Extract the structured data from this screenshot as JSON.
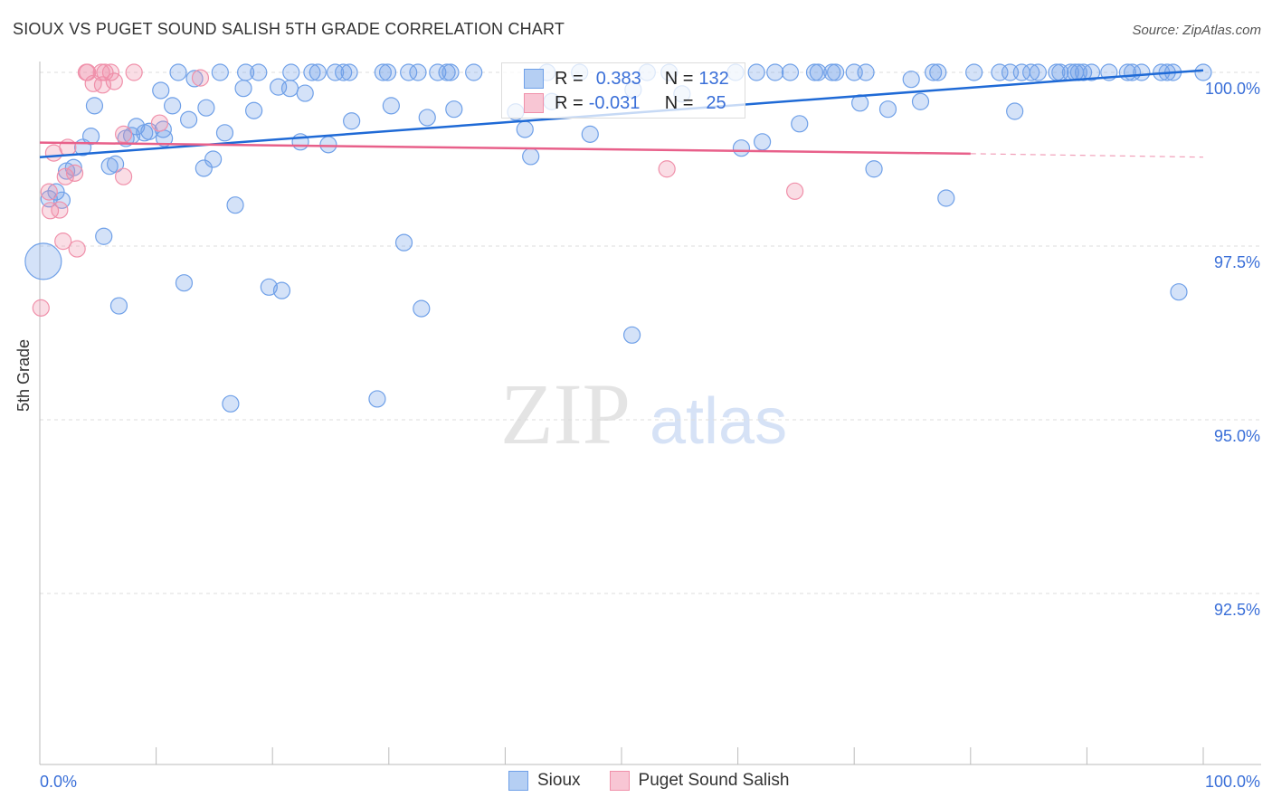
{
  "chart_data": {
    "type": "scatter",
    "title": "SIOUX VS PUGET SOUND SALISH 5TH GRADE CORRELATION CHART",
    "source": "Source: ZipAtlas.com",
    "xlabel": "",
    "ylabel": "5th Grade",
    "xlim": [
      0,
      100
    ],
    "ylim": [
      90,
      100
    ],
    "x_tick_labels": [
      "0.0%",
      "100.0%"
    ],
    "y_ticks": [
      {
        "v": 100,
        "label": "100.0%"
      },
      {
        "v": 97.5,
        "label": "97.5%"
      },
      {
        "v": 95,
        "label": "95.0%"
      },
      {
        "v": 92.5,
        "label": "92.5%"
      }
    ],
    "watermark": "ZIPatlas",
    "legend": {
      "stats": [
        {
          "r_label": "R =",
          "r": "0.383",
          "n_label": "N =",
          "n": "132"
        },
        {
          "r_label": "R =",
          "r": "-0.031",
          "n_label": "N =",
          "n": "25"
        }
      ]
    },
    "series": [
      {
        "name": "Sioux",
        "color": "#6fa0e8",
        "line_color": "#1f6ad6",
        "trend": [
          [
            0,
            98.78
          ],
          [
            100,
            100.03
          ]
        ],
        "points": [
          [
            11.9,
            100
          ],
          [
            15.5,
            100
          ],
          [
            17.7,
            100
          ],
          [
            18.8,
            100
          ],
          [
            21.6,
            100
          ],
          [
            23.4,
            100
          ],
          [
            23.9,
            100
          ],
          [
            25.4,
            100
          ],
          [
            26.1,
            100
          ],
          [
            26.6,
            100
          ],
          [
            29.5,
            100
          ],
          [
            29.9,
            100
          ],
          [
            31.7,
            100
          ],
          [
            32.5,
            100
          ],
          [
            34.2,
            100
          ],
          [
            35.0,
            100
          ],
          [
            35.3,
            100
          ],
          [
            37.3,
            100
          ],
          [
            43.6,
            100
          ],
          [
            46.4,
            100
          ],
          [
            52.2,
            100
          ],
          [
            54.1,
            100
          ],
          [
            59.8,
            100
          ],
          [
            61.6,
            100
          ],
          [
            63.2,
            100
          ],
          [
            64.5,
            100
          ],
          [
            66.6,
            100
          ],
          [
            66.9,
            100
          ],
          [
            68.1,
            100
          ],
          [
            68.4,
            100
          ],
          [
            70.0,
            100
          ],
          [
            71.0,
            100
          ],
          [
            76.8,
            100
          ],
          [
            77.2,
            100
          ],
          [
            80.3,
            100
          ],
          [
            82.5,
            100
          ],
          [
            83.4,
            100
          ],
          [
            84.4,
            100
          ],
          [
            85.2,
            100
          ],
          [
            85.8,
            100
          ],
          [
            87.4,
            100
          ],
          [
            87.7,
            100
          ],
          [
            88.6,
            100
          ],
          [
            89.0,
            100
          ],
          [
            89.3,
            100
          ],
          [
            89.7,
            100
          ],
          [
            90.4,
            100
          ],
          [
            91.9,
            100
          ],
          [
            93.5,
            100
          ],
          [
            93.9,
            100
          ],
          [
            94.7,
            100
          ],
          [
            96.4,
            100
          ],
          [
            96.9,
            100
          ],
          [
            97.4,
            100
          ],
          [
            100,
            100
          ],
          [
            10.4,
            99.74
          ],
          [
            13.3,
            99.91
          ],
          [
            17.5,
            99.77
          ],
          [
            20.5,
            99.79
          ],
          [
            21.5,
            99.77
          ],
          [
            22.8,
            99.7
          ],
          [
            4.7,
            99.52
          ],
          [
            11.4,
            99.52
          ],
          [
            14.3,
            99.49
          ],
          [
            18.4,
            99.45
          ],
          [
            12.8,
            99.32
          ],
          [
            8.3,
            99.22
          ],
          [
            10.6,
            99.18
          ],
          [
            7.4,
            99.05
          ],
          [
            7.9,
            99.09
          ],
          [
            9.0,
            99.13
          ],
          [
            9.4,
            99.15
          ],
          [
            10.7,
            99.05
          ],
          [
            15.9,
            99.13
          ],
          [
            4.4,
            99.08
          ],
          [
            3.7,
            98.92
          ],
          [
            2.3,
            98.58
          ],
          [
            2.9,
            98.63
          ],
          [
            6.0,
            98.65
          ],
          [
            6.5,
            98.68
          ],
          [
            14.1,
            98.62
          ],
          [
            14.9,
            98.75
          ],
          [
            0.8,
            98.18
          ],
          [
            1.4,
            98.28
          ],
          [
            1.9,
            98.16
          ],
          [
            16.8,
            98.09
          ],
          [
            5.5,
            97.64
          ],
          [
            0.3,
            97.28,
            "L"
          ],
          [
            12.4,
            96.97
          ],
          [
            19.7,
            96.91
          ],
          [
            20.8,
            96.86
          ],
          [
            6.8,
            96.64
          ],
          [
            16.4,
            95.23
          ],
          [
            29.0,
            95.3
          ],
          [
            31.3,
            97.55
          ],
          [
            32.8,
            96.6
          ],
          [
            50.9,
            96.22
          ],
          [
            26.8,
            99.3
          ],
          [
            30.2,
            99.52
          ],
          [
            33.3,
            99.35
          ],
          [
            35.6,
            99.47
          ],
          [
            22.4,
            99.0
          ],
          [
            24.8,
            98.96
          ],
          [
            41.7,
            99.18
          ],
          [
            42.2,
            98.79
          ],
          [
            47.3,
            99.11
          ],
          [
            55.2,
            99.69
          ],
          [
            60.3,
            98.91
          ],
          [
            62.1,
            99.0
          ],
          [
            65.3,
            99.26
          ],
          [
            70.5,
            99.56
          ],
          [
            72.9,
            99.47
          ],
          [
            71.7,
            98.61
          ],
          [
            74.9,
            99.9
          ],
          [
            75.7,
            99.58
          ],
          [
            77.9,
            98.19
          ],
          [
            83.8,
            99.44
          ],
          [
            97.9,
            96.84
          ],
          [
            40.9,
            99.43
          ],
          [
            44.0,
            99.58
          ],
          [
            51.0,
            99.75
          ]
        ]
      },
      {
        "name": "Puget Sound Salish",
        "color": "#f090aa",
        "line_color": "#e8608a",
        "trend": [
          [
            0,
            98.99
          ],
          [
            80,
            98.83
          ]
        ],
        "trend_dashed": [
          [
            80,
            98.83
          ],
          [
            100,
            98.78
          ]
        ],
        "points": [
          [
            4.1,
            100
          ],
          [
            4.0,
            100
          ],
          [
            5.3,
            100
          ],
          [
            5.6,
            100
          ],
          [
            6.1,
            100
          ],
          [
            8.1,
            100
          ],
          [
            4.6,
            99.84
          ],
          [
            5.4,
            99.82
          ],
          [
            6.4,
            99.87
          ],
          [
            13.8,
            99.92
          ],
          [
            10.3,
            99.27
          ],
          [
            7.2,
            99.11
          ],
          [
            2.4,
            98.92
          ],
          [
            1.2,
            98.84
          ],
          [
            2.2,
            98.5
          ],
          [
            3.0,
            98.55
          ],
          [
            7.2,
            98.5
          ],
          [
            0.8,
            98.28
          ],
          [
            0.9,
            98.01
          ],
          [
            1.7,
            98.02
          ],
          [
            2.0,
            97.57
          ],
          [
            3.2,
            97.46
          ],
          [
            0.1,
            96.61
          ],
          [
            53.9,
            98.61
          ],
          [
            64.9,
            98.29
          ]
        ]
      }
    ]
  }
}
